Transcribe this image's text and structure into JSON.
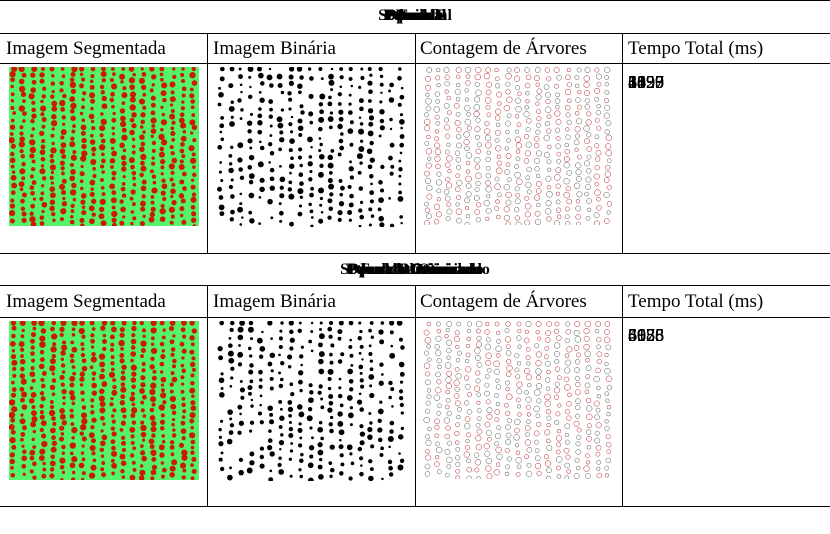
{
  "sections": [
    {
      "titles": [
        "Naive",
        "Paralelo",
        "Sequencial",
        "OpenMP",
        "Pthreads",
        "Fork",
        "Potencial"
      ],
      "headers": {
        "segmented": "Imagem Segmentada",
        "binary": "Imagem Binária",
        "count": "Contagem de Árvores",
        "time": "Tempo Total (ms)"
      },
      "times": [
        "1697",
        "2355",
        "3490",
        "4829",
        "5123",
        "6097"
      ]
    },
    {
      "titles": [
        "Naive",
        "Paralelo Otimizado",
        "Sequencial Otimizado",
        "OpenMP Otimizado",
        "Pthreads Otimizado",
        "Fork Otimizado"
      ],
      "headers": {
        "segmented": "Imagem Segmentada",
        "binary": "Imagem Binária",
        "count": "Contagem de Árvores",
        "time": "Tempo Total (ms)"
      },
      "times": [
        "3088",
        "4125",
        "5036",
        "6155",
        "5958",
        "6678"
      ]
    }
  ],
  "colors": {
    "segmented_background": "#55f26a",
    "segmented_marks": "#cc1a00",
    "binary_marks": "#000000",
    "count_marks": "#b22222"
  }
}
